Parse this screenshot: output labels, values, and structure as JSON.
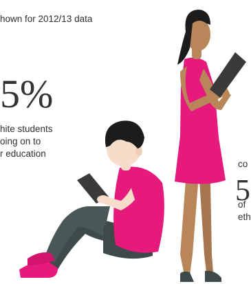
{
  "note": {
    "text": "hown for 2012/13 data"
  },
  "left_stat": {
    "value": "5%",
    "caption_lines": [
      "hite students",
      "oing on to",
      "r education"
    ]
  },
  "right_stat": {
    "pre_text": "co",
    "value": "5",
    "caption_lines": [
      "of",
      "eth"
    ]
  },
  "colors": {
    "accent_pink": "#e6197d",
    "hair": "#1c1c1c",
    "skin_light": "#f7dcc9",
    "skin_dark": "#b88659",
    "trousers": "#3e4a4a",
    "tablet": "#3a3a3a"
  },
  "figures": [
    "seated-boy-with-tablet",
    "standing-woman-with-tablet"
  ]
}
